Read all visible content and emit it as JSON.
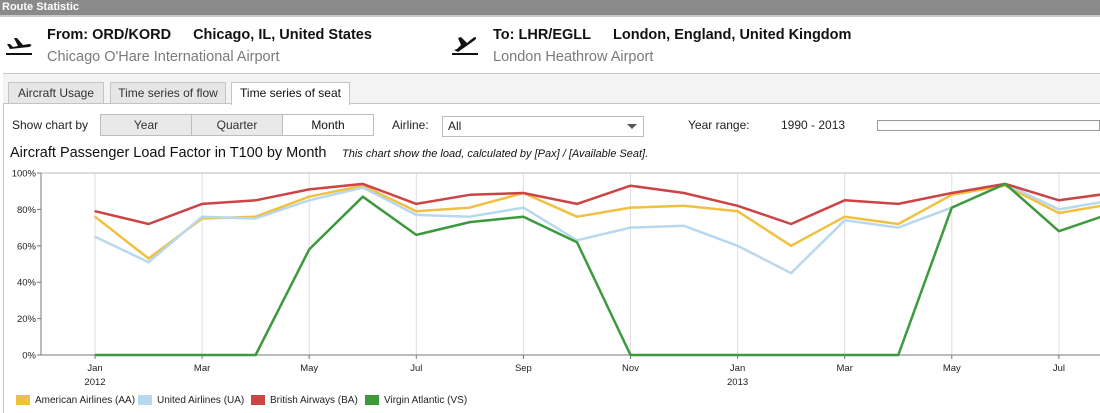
{
  "window": {
    "title": "Route Statistic"
  },
  "route": {
    "from": {
      "label": "From: ORD/KORD",
      "place": "Chicago, IL, United States",
      "airport": "Chicago O'Hare International Airport",
      "icon": "plane-departure-icon"
    },
    "to": {
      "label": "To: LHR/EGLL",
      "place": "London, England, United Kingdom",
      "airport": "London Heathrow Airport",
      "icon": "plane-arrival-icon"
    }
  },
  "tabs": [
    {
      "label": "Aircraft Usage",
      "active": false
    },
    {
      "label": "Time series of flow",
      "active": false
    },
    {
      "label": "Time series of seat",
      "active": true
    }
  ],
  "controls": {
    "show_chart_by_label": "Show chart by",
    "granularity": [
      {
        "label": "Year",
        "active": false
      },
      {
        "label": "Quarter",
        "active": false
      },
      {
        "label": "Month",
        "active": true
      }
    ],
    "airline_label": "Airline:",
    "airline_value": "All",
    "year_range_label": "Year range:",
    "year_range_value": "1990 - 2013"
  },
  "chart_title": "Aircraft Passenger Load Factor in T100 by Month",
  "chart_subtitle": "This chart show the load, calculated by [Pax] / [Available Seat].",
  "chart_data": {
    "type": "line",
    "title": "Aircraft Passenger Load Factor in T100 by Month",
    "subtitle": "This chart show the load, calculated by [Pax] / [Available Seat].",
    "x": [
      "2012-01",
      "2012-02",
      "2012-03",
      "2012-04",
      "2012-05",
      "2012-06",
      "2012-07",
      "2012-08",
      "2012-09",
      "2012-10",
      "2012-11",
      "2012-12",
      "2013-01",
      "2013-02",
      "2013-03",
      "2013-04",
      "2013-05",
      "2013-06",
      "2013-07",
      "2013-08"
    ],
    "x_tick_labels": [
      {
        "x": "2012-01",
        "label": "Jan",
        "year": "2012"
      },
      {
        "x": "2012-03",
        "label": "Mar"
      },
      {
        "x": "2012-05",
        "label": "May"
      },
      {
        "x": "2012-07",
        "label": "Jul"
      },
      {
        "x": "2012-09",
        "label": "Sep"
      },
      {
        "x": "2012-11",
        "label": "Nov"
      },
      {
        "x": "2013-01",
        "label": "Jan",
        "year": "2013"
      },
      {
        "x": "2013-03",
        "label": "Mar"
      },
      {
        "x": "2013-05",
        "label": "May"
      },
      {
        "x": "2013-07",
        "label": "Jul"
      }
    ],
    "y_ticks": [
      "0%",
      "20%",
      "40%",
      "60%",
      "80%",
      "100%"
    ],
    "ylim": [
      0,
      100
    ],
    "y_unit": "%",
    "grid": {
      "vertical": true,
      "horizontal": false
    },
    "legend_position": "bottom-left",
    "series": [
      {
        "name": "American Airlines (AA)",
        "color": "#f0c040",
        "values": [
          76,
          53,
          75,
          76,
          87,
          93,
          79,
          81,
          89,
          76,
          81,
          82,
          79,
          60,
          76,
          72,
          88,
          93,
          78,
          83
        ]
      },
      {
        "name": "United Airlines (UA)",
        "color": "#b8d8f0",
        "values": [
          65,
          51,
          76,
          75,
          85,
          92,
          77,
          76,
          81,
          63,
          70,
          71,
          60,
          45,
          74,
          70,
          81,
          94,
          80,
          85
        ]
      },
      {
        "name": "British Airways (BA)",
        "color": "#cc4444",
        "values": [
          79,
          72,
          83,
          85,
          91,
          94,
          83,
          88,
          89,
          83,
          93,
          89,
          82,
          72,
          85,
          83,
          89,
          94,
          85,
          89
        ]
      },
      {
        "name": "Virgin Atlantic (VS)",
        "color": "#3c9a3c",
        "values": [
          0,
          0,
          0,
          0,
          58,
          87,
          66,
          73,
          76,
          62,
          0,
          0,
          0,
          0,
          0,
          0,
          81,
          94,
          68,
          78
        ]
      }
    ]
  }
}
